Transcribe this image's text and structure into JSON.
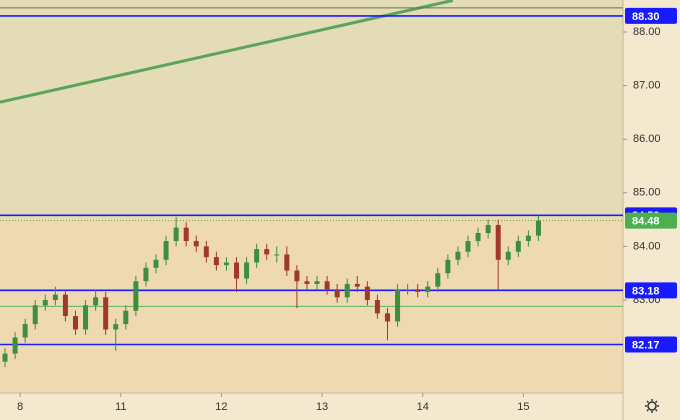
{
  "chart_data": {
    "type": "candlestick",
    "x": [
      -0.15,
      -0.05,
      0.05,
      0.15,
      0.25,
      0.35,
      0.45,
      0.55,
      0.65,
      0.75,
      0.85,
      0.95,
      1.05,
      1.15,
      1.25,
      1.35,
      1.45,
      1.55,
      1.65,
      1.75,
      1.85,
      1.95,
      2.05,
      2.15,
      2.25,
      2.35,
      2.45,
      2.55,
      2.65,
      2.75,
      2.85,
      2.95,
      3.05,
      3.15,
      3.25,
      3.35,
      3.45,
      3.55,
      3.65,
      3.75,
      3.85,
      3.95,
      4.05,
      4.15,
      4.25,
      4.35,
      4.45,
      4.55,
      4.65,
      4.75,
      4.85,
      4.95,
      5.05,
      5.15
    ],
    "open": [
      81.85,
      82.0,
      82.3,
      82.55,
      82.9,
      83.0,
      83.1,
      82.7,
      82.45,
      82.9,
      83.05,
      82.45,
      82.55,
      82.8,
      83.35,
      83.6,
      83.75,
      84.1,
      84.35,
      84.1,
      84.0,
      83.8,
      83.65,
      83.7,
      83.4,
      83.7,
      83.95,
      83.85,
      83.85,
      83.55,
      83.35,
      83.3,
      83.35,
      83.2,
      83.05,
      83.3,
      83.25,
      83.0,
      82.75,
      82.6,
      83.2,
      83.2,
      83.15,
      83.25,
      83.5,
      83.75,
      83.9,
      84.1,
      84.25,
      84.4,
      83.75,
      83.9,
      84.1,
      84.2
    ],
    "high": [
      82.1,
      82.4,
      82.65,
      83.0,
      83.1,
      83.25,
      83.2,
      82.8,
      83.0,
      83.2,
      83.15,
      82.65,
      82.9,
      83.45,
      83.7,
      83.85,
      84.2,
      84.55,
      84.45,
      84.2,
      84.1,
      83.9,
      83.8,
      83.8,
      83.8,
      84.05,
      84.05,
      84.0,
      84.0,
      83.65,
      83.45,
      83.45,
      83.45,
      83.3,
      83.4,
      83.45,
      83.35,
      83.1,
      82.85,
      83.3,
      83.3,
      83.3,
      83.35,
      83.6,
      83.85,
      84.0,
      84.2,
      84.35,
      84.5,
      84.5,
      84.0,
      84.2,
      84.3,
      84.58
    ],
    "low": [
      81.75,
      81.9,
      82.2,
      82.45,
      82.8,
      82.9,
      82.6,
      82.35,
      82.35,
      82.8,
      82.35,
      82.05,
      82.45,
      82.7,
      83.25,
      83.5,
      83.65,
      84.0,
      84.0,
      83.9,
      83.7,
      83.55,
      83.55,
      83.15,
      83.3,
      83.6,
      83.75,
      83.7,
      83.45,
      82.85,
      83.2,
      83.2,
      83.1,
      82.95,
      82.95,
      83.15,
      82.9,
      82.65,
      82.25,
      82.5,
      83.1,
      83.05,
      83.05,
      83.15,
      83.4,
      83.65,
      83.8,
      84.0,
      84.15,
      83.2,
      83.65,
      83.8,
      84.0,
      84.1
    ],
    "close": [
      82.0,
      82.3,
      82.55,
      82.9,
      83.0,
      83.1,
      82.7,
      82.45,
      82.9,
      83.05,
      82.45,
      82.55,
      82.8,
      83.35,
      83.6,
      83.75,
      84.1,
      84.35,
      84.1,
      84.0,
      83.8,
      83.65,
      83.7,
      83.4,
      83.7,
      83.95,
      83.85,
      83.85,
      83.55,
      83.35,
      83.3,
      83.35,
      83.2,
      83.05,
      83.3,
      83.25,
      83.0,
      82.75,
      82.6,
      83.2,
      83.2,
      83.15,
      83.25,
      83.5,
      83.75,
      83.9,
      84.1,
      84.25,
      84.4,
      83.75,
      83.9,
      84.1,
      84.2,
      84.48
    ],
    "up_color": "#3d8f3d",
    "down_color": "#a0392c",
    "xlim": [
      -0.2,
      5.99
    ],
    "ylim": [
      81.265,
      88.597
    ],
    "xticks": [
      {
        "value": 0,
        "label": "8"
      },
      {
        "value": 1,
        "label": "11"
      },
      {
        "value": 2,
        "label": "12"
      },
      {
        "value": 3,
        "label": "13"
      },
      {
        "value": 4,
        "label": "14"
      },
      {
        "value": 5,
        "label": "15"
      }
    ],
    "yticks": [
      {
        "value": 83,
        "label": "83.00"
      },
      {
        "value": 84,
        "label": "84.00"
      },
      {
        "value": 85,
        "label": "85.00"
      },
      {
        "value": 86,
        "label": "86.00"
      },
      {
        "value": 87,
        "label": "87.00"
      },
      {
        "value": 88,
        "label": "88.00"
      }
    ],
    "levels": [
      {
        "value": 88.3,
        "label": "88.30",
        "color": "#1a1aff"
      },
      {
        "value": 84.58,
        "label": "84.58",
        "color": "#1a1aff"
      },
      {
        "value": 83.18,
        "label": "83.18",
        "color": "#1a1aff"
      },
      {
        "value": 82.17,
        "label": "82.17",
        "color": "#1a1aff"
      },
      {
        "value": 82.88,
        "color": "#5cb85c"
      },
      {
        "value": 88.45,
        "color": "#7a6a4a"
      }
    ],
    "last_price": {
      "value": 84.48,
      "label": "84.48",
      "color": "#4caf50"
    },
    "trend_line": {
      "x": [
        -0.2,
        4.3
      ],
      "y": [
        86.69,
        88.59
      ],
      "color": "#5aa55a"
    }
  }
}
